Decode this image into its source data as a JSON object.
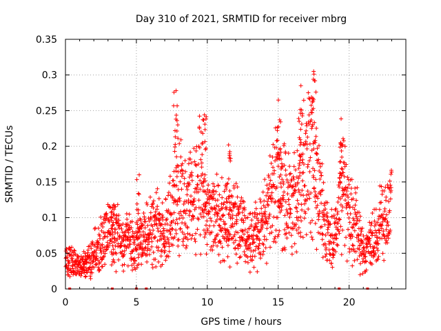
{
  "chart_data": {
    "type": "scatter",
    "title": "Day 310 of 2021, SRMTID for receiver mbrg",
    "xlabel": "GPS time / hours",
    "ylabel": "SRMTID / TECUs",
    "xlim": [
      0,
      24
    ],
    "ylim": [
      0,
      0.35
    ],
    "xticks": [
      0,
      5,
      10,
      15,
      20
    ],
    "xtick_labels": [
      "0",
      "5",
      "10",
      "15",
      "20"
    ],
    "yticks": [
      0,
      0.05,
      0.1,
      0.15,
      0.2,
      0.25,
      0.3,
      0.35
    ],
    "ytick_labels": [
      "0",
      "0.05",
      "0.1",
      "0.15",
      "0.2",
      "0.25",
      "0.3",
      "0.35"
    ],
    "grid": true,
    "marker": "+",
    "marker_color": "#ff0000",
    "series": [
      {
        "name": "SRMTID",
        "approx_trend": [
          {
            "x": 0.0,
            "y": 0.04
          },
          {
            "x": 0.5,
            "y": 0.035
          },
          {
            "x": 1.0,
            "y": 0.03
          },
          {
            "x": 1.5,
            "y": 0.035
          },
          {
            "x": 2.0,
            "y": 0.05
          },
          {
            "x": 2.5,
            "y": 0.065
          },
          {
            "x": 3.0,
            "y": 0.08
          },
          {
            "x": 3.5,
            "y": 0.08
          },
          {
            "x": 4.0,
            "y": 0.06
          },
          {
            "x": 4.5,
            "y": 0.07
          },
          {
            "x": 5.0,
            "y": 0.06
          },
          {
            "x": 5.5,
            "y": 0.07
          },
          {
            "x": 6.0,
            "y": 0.08
          },
          {
            "x": 6.5,
            "y": 0.085
          },
          {
            "x": 7.0,
            "y": 0.08
          },
          {
            "x": 7.5,
            "y": 0.11
          },
          {
            "x": 8.0,
            "y": 0.14
          },
          {
            "x": 8.5,
            "y": 0.11
          },
          {
            "x": 9.0,
            "y": 0.13
          },
          {
            "x": 9.5,
            "y": 0.15
          },
          {
            "x": 10.0,
            "y": 0.105
          },
          {
            "x": 10.5,
            "y": 0.1
          },
          {
            "x": 11.0,
            "y": 0.1
          },
          {
            "x": 11.5,
            "y": 0.095
          },
          {
            "x": 12.0,
            "y": 0.1
          },
          {
            "x": 12.5,
            "y": 0.085
          },
          {
            "x": 13.0,
            "y": 0.075
          },
          {
            "x": 13.5,
            "y": 0.075
          },
          {
            "x": 14.0,
            "y": 0.09
          },
          {
            "x": 14.5,
            "y": 0.12
          },
          {
            "x": 15.0,
            "y": 0.16
          },
          {
            "x": 15.5,
            "y": 0.12
          },
          {
            "x": 16.0,
            "y": 0.12
          },
          {
            "x": 16.5,
            "y": 0.14
          },
          {
            "x": 17.0,
            "y": 0.18
          },
          {
            "x": 17.5,
            "y": 0.2
          },
          {
            "x": 18.0,
            "y": 0.12
          },
          {
            "x": 18.5,
            "y": 0.075
          },
          {
            "x": 19.0,
            "y": 0.065
          },
          {
            "x": 19.5,
            "y": 0.16
          },
          {
            "x": 20.0,
            "y": 0.1
          },
          {
            "x": 20.5,
            "y": 0.09
          },
          {
            "x": 21.0,
            "y": 0.05
          },
          {
            "x": 21.5,
            "y": 0.06
          },
          {
            "x": 22.0,
            "y": 0.08
          },
          {
            "x": 22.5,
            "y": 0.1
          },
          {
            "x": 23.0,
            "y": 0.11
          }
        ],
        "approx_peaks": [
          {
            "x": 7.8,
            "y": 0.278
          },
          {
            "x": 9.8,
            "y": 0.244
          },
          {
            "x": 11.5,
            "y": 0.202
          },
          {
            "x": 15.1,
            "y": 0.237
          },
          {
            "x": 16.6,
            "y": 0.285
          },
          {
            "x": 17.5,
            "y": 0.305
          },
          {
            "x": 19.4,
            "y": 0.205
          },
          {
            "x": 5.2,
            "y": 0.16
          },
          {
            "x": 3.4,
            "y": 0.118
          }
        ],
        "data_gaps_near_zero_x": [
          0.3,
          3.3,
          5.0,
          5.7,
          19.3,
          21.3
        ]
      }
    ]
  }
}
